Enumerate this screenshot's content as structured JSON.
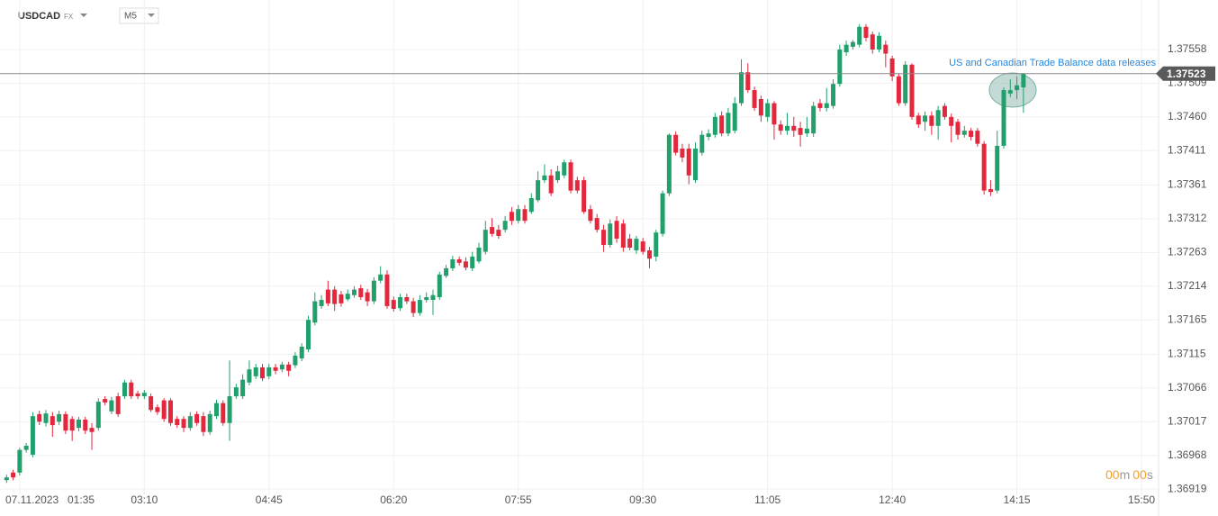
{
  "chart_data": {
    "type": "candlestick",
    "symbol": "USDCAD",
    "market": "FX",
    "timeframe": "M5",
    "annotation": "US and Canadian Trade Balance data releases",
    "date_label": "07.11.2023",
    "countdown": [
      "00",
      "m",
      "00",
      "s"
    ],
    "last_price": 1.37523,
    "up_color": "#22a06b",
    "down_color": "#e3283e",
    "grid": true,
    "ylim": [
      1.3691,
      1.3763
    ],
    "yticks": [
      1.37558,
      1.37509,
      {
        "value": 1.3746,
        "label": "1.37460"
      },
      1.37411,
      1.37361,
      1.37312,
      1.37263,
      1.37214,
      1.37165,
      1.37115,
      1.37066,
      1.37017,
      1.36968,
      1.36919
    ],
    "xlim": [
      -1,
      175.6
    ],
    "xticks": [
      {
        "value": 2,
        "label": "01:35"
      },
      {
        "value": 21,
        "label": "03:10"
      },
      {
        "value": 40,
        "label": "04:45"
      },
      {
        "value": 59,
        "label": "06:20"
      },
      {
        "value": 78,
        "label": "07:55"
      },
      {
        "value": 97,
        "label": "09:30"
      },
      {
        "value": 116,
        "label": "11:05"
      },
      {
        "value": 135,
        "label": "12:40"
      },
      {
        "value": 154,
        "label": "14:15"
      },
      {
        "value": 173,
        "label": "15:50"
      }
    ],
    "open": [
      1.36932,
      1.36943,
      1.36943,
      1.36976,
      1.36969,
      1.37028,
      1.37015,
      1.37025,
      1.37017,
      1.37028,
      1.37021,
      1.37008,
      1.3702,
      1.37008,
      1.37008,
      1.3705,
      1.37032,
      1.37054,
      1.37054,
      1.37074,
      1.37058,
      1.37054,
      1.37054,
      1.37038,
      1.37048,
      1.37048,
      1.37021,
      1.37021,
      1.37008,
      1.37028,
      1.37025,
      1.37002,
      1.37025,
      1.37044,
      1.37015,
      1.37054,
      1.37054,
      1.37074,
      1.37083,
      1.37096,
      1.37083,
      1.37096,
      1.37093,
      1.371,
      1.37099,
      1.37109,
      1.37122,
      1.37161,
      1.37185,
      1.37209,
      1.37209,
      1.37202,
      1.37195,
      1.37201,
      1.37211,
      1.37205,
      1.37192,
      1.37222,
      1.37231,
      1.37194,
      1.37182,
      1.37198,
      1.37192,
      1.37175,
      1.37194,
      1.37194,
      1.37198,
      1.37229,
      1.3724,
      1.37253,
      1.3725,
      1.3724,
      1.3725,
      1.37264,
      1.373,
      1.37296,
      1.37296,
      1.37322,
      1.37309,
      1.37326,
      1.37322,
      1.37339,
      1.37368,
      1.37375,
      1.37368,
      1.37375,
      1.37394,
      1.37368,
      1.37368,
      1.37326,
      1.37313,
      1.37296,
      1.37274,
      1.37309,
      1.37305,
      1.37283,
      1.37266,
      1.37279,
      1.37266,
      1.37257,
      1.3729,
      1.37349,
      1.37434,
      1.37414,
      1.37414,
      1.37368,
      1.37408,
      1.37431,
      1.37434,
      1.37462,
      1.37436,
      1.3744,
      1.3748,
      1.37525,
      1.37499,
      1.37486,
      1.3746,
      1.3748,
      1.37449,
      1.3744,
      1.37447,
      1.37444,
      1.37436,
      1.37436,
      1.3748,
      1.37473,
      1.37476,
      1.37508,
      1.37554,
      1.37562,
      1.37565,
      1.37591,
      1.3758,
      1.37558,
      1.37565,
      1.37545,
      1.37519,
      1.3748,
      1.37536,
      1.37462,
      1.37453,
      1.37462,
      1.37447,
      1.37476,
      1.3746,
      1.37453,
      1.37434,
      1.3744,
      1.3744,
      1.37421,
      1.37355,
      1.37353,
      1.37418,
      1.37494,
      1.37499,
      1.37503
    ],
    "high": [
      1.3694,
      1.36947,
      1.36979,
      1.36986,
      1.37031,
      1.37033,
      1.37034,
      1.37031,
      1.37033,
      1.37032,
      1.37025,
      1.37024,
      1.37024,
      1.37015,
      1.37051,
      1.37054,
      1.37053,
      1.37059,
      1.37078,
      1.37078,
      1.37062,
      1.37063,
      1.37058,
      1.37042,
      1.37051,
      1.37051,
      1.37025,
      1.37025,
      1.37031,
      1.37032,
      1.37031,
      1.37033,
      1.37049,
      1.37048,
      1.37106,
      1.37072,
      1.37086,
      1.37106,
      1.37101,
      1.37101,
      1.37101,
      1.37101,
      1.37104,
      1.37104,
      1.37118,
      1.37131,
      1.37171,
      1.37205,
      1.37201,
      1.37222,
      1.37214,
      1.37207,
      1.37209,
      1.37214,
      1.37216,
      1.3721,
      1.37227,
      1.37243,
      1.37237,
      1.37199,
      1.37203,
      1.37203,
      1.37197,
      1.37201,
      1.37205,
      1.37209,
      1.37235,
      1.37245,
      1.37258,
      1.37257,
      1.37256,
      1.37264,
      1.37277,
      1.37309,
      1.37313,
      1.37303,
      1.37316,
      1.37329,
      1.37332,
      1.37332,
      1.37349,
      1.37381,
      1.37391,
      1.37384,
      1.37389,
      1.37398,
      1.37398,
      1.37373,
      1.37373,
      1.37332,
      1.37319,
      1.37303,
      1.37311,
      1.37316,
      1.37311,
      1.3729,
      1.37287,
      1.37284,
      1.37271,
      1.37296,
      1.37353,
      1.37436,
      1.37439,
      1.37421,
      1.37421,
      1.37423,
      1.3744,
      1.37442,
      1.37466,
      1.37468,
      1.37473,
      1.37489,
      1.37544,
      1.37538,
      1.37504,
      1.37491,
      1.37486,
      1.37483,
      1.37455,
      1.37466,
      1.3746,
      1.37453,
      1.3746,
      1.37482,
      1.37486,
      1.37502,
      1.37515,
      1.37565,
      1.37571,
      1.37572,
      1.37595,
      1.37595,
      1.37584,
      1.37583,
      1.37571,
      1.37549,
      1.37523,
      1.37541,
      1.37538,
      1.37466,
      1.37468,
      1.37468,
      1.37476,
      1.3748,
      1.37465,
      1.37457,
      1.37447,
      1.37444,
      1.37444,
      1.37425,
      1.37368,
      1.3744,
      1.37503,
      1.37515,
      1.37519,
      1.37524
    ],
    "low": [
      1.36928,
      1.36932,
      1.36939,
      1.36972,
      1.36965,
      1.37012,
      1.3701,
      1.36995,
      1.37012,
      1.36999,
      1.36989,
      1.37003,
      1.36999,
      1.36976,
      1.37004,
      1.37041,
      1.37028,
      1.37024,
      1.3705,
      1.3705,
      1.3705,
      1.3705,
      1.37031,
      1.37027,
      1.37017,
      1.37011,
      1.37008,
      1.37002,
      1.37004,
      1.37011,
      1.36996,
      1.36998,
      1.37021,
      1.37011,
      1.36989,
      1.3705,
      1.3705,
      1.3707,
      1.37079,
      1.37076,
      1.37079,
      1.37086,
      1.37089,
      1.37083,
      1.37095,
      1.37105,
      1.37118,
      1.37157,
      1.37181,
      1.37185,
      1.37178,
      1.37184,
      1.37192,
      1.37197,
      1.37194,
      1.37185,
      1.37188,
      1.37218,
      1.37181,
      1.37177,
      1.37178,
      1.37188,
      1.37169,
      1.37171,
      1.3719,
      1.37172,
      1.37194,
      1.37226,
      1.37236,
      1.37244,
      1.37237,
      1.37236,
      1.37247,
      1.3726,
      1.37286,
      1.37283,
      1.37292,
      1.37303,
      1.37305,
      1.37305,
      1.37319,
      1.37336,
      1.37364,
      1.37345,
      1.37364,
      1.37371,
      1.37349,
      1.37349,
      1.37319,
      1.37305,
      1.37292,
      1.37264,
      1.3727,
      1.37277,
      1.37264,
      1.37266,
      1.37261,
      1.3726,
      1.3724,
      1.3725,
      1.37286,
      1.37345,
      1.37404,
      1.37394,
      1.37362,
      1.37364,
      1.37404,
      1.37426,
      1.3743,
      1.37432,
      1.37432,
      1.37436,
      1.37476,
      1.37495,
      1.37469,
      1.37453,
      1.37453,
      1.37427,
      1.37434,
      1.37434,
      1.37431,
      1.37417,
      1.37431,
      1.37431,
      1.37468,
      1.37468,
      1.37472,
      1.37504,
      1.37549,
      1.37558,
      1.37561,
      1.3757,
      1.37552,
      1.37554,
      1.37532,
      1.37512,
      1.37476,
      1.37476,
      1.37456,
      1.37444,
      1.3744,
      1.37434,
      1.37427,
      1.37456,
      1.37423,
      1.37427,
      1.3743,
      1.37426,
      1.37417,
      1.37347,
      1.37345,
      1.37349,
      1.37414,
      1.37489,
      1.37486,
      1.37466
    ],
    "close": [
      1.36936,
      1.36936,
      1.36976,
      1.36982,
      1.37025,
      1.37017,
      1.37029,
      1.37012,
      1.37028,
      1.37004,
      1.37004,
      1.3702,
      1.37004,
      1.37002,
      1.37046,
      1.37045,
      1.37048,
      1.37028,
      1.37074,
      1.37054,
      1.37054,
      1.37059,
      1.37034,
      1.37031,
      1.37021,
      1.37015,
      1.37012,
      1.37008,
      1.37025,
      1.37015,
      1.37002,
      1.37028,
      1.37044,
      1.37015,
      1.37054,
      1.37067,
      1.37078,
      1.37093,
      1.37096,
      1.3708,
      1.37096,
      1.37091,
      1.371,
      1.37091,
      1.37113,
      1.37126,
      1.37165,
      1.37192,
      1.37194,
      1.37189,
      1.37188,
      1.37189,
      1.37203,
      1.37209,
      1.37198,
      1.37192,
      1.37222,
      1.37231,
      1.37185,
      1.37181,
      1.37198,
      1.37192,
      1.37175,
      1.37194,
      1.37198,
      1.37201,
      1.37231,
      1.3724,
      1.37253,
      1.37248,
      1.37241,
      1.37257,
      1.3727,
      1.37296,
      1.3729,
      1.37287,
      1.37309,
      1.37309,
      1.37326,
      1.37309,
      1.37342,
      1.37368,
      1.37375,
      1.37349,
      1.37381,
      1.37394,
      1.37353,
      1.37353,
      1.37322,
      1.37309,
      1.37296,
      1.37274,
      1.37305,
      1.37283,
      1.3727,
      1.3727,
      1.37283,
      1.37264,
      1.37254,
      1.37292,
      1.37349,
      1.37434,
      1.37408,
      1.37401,
      1.37375,
      1.37414,
      1.37434,
      1.37436,
      1.3746,
      1.37436,
      1.37466,
      1.3748,
      1.37525,
      1.37499,
      1.37473,
      1.37462,
      1.3748,
      1.37449,
      1.3744,
      1.37447,
      1.3744,
      1.37434,
      1.37443,
      1.37476,
      1.37473,
      1.3748,
      1.37508,
      1.37558,
      1.37565,
      1.37569,
      1.37591,
      1.37575,
      1.37558,
      1.37578,
      1.37552,
      1.37519,
      1.3748,
      1.37536,
      1.3746,
      1.37449,
      1.37462,
      1.37447,
      1.3747,
      1.3746,
      1.37447,
      1.37434,
      1.3744,
      1.37431,
      1.37421,
      1.37353,
      1.37351,
      1.37418,
      1.37499,
      1.37499,
      1.37506,
      1.37523
    ]
  }
}
